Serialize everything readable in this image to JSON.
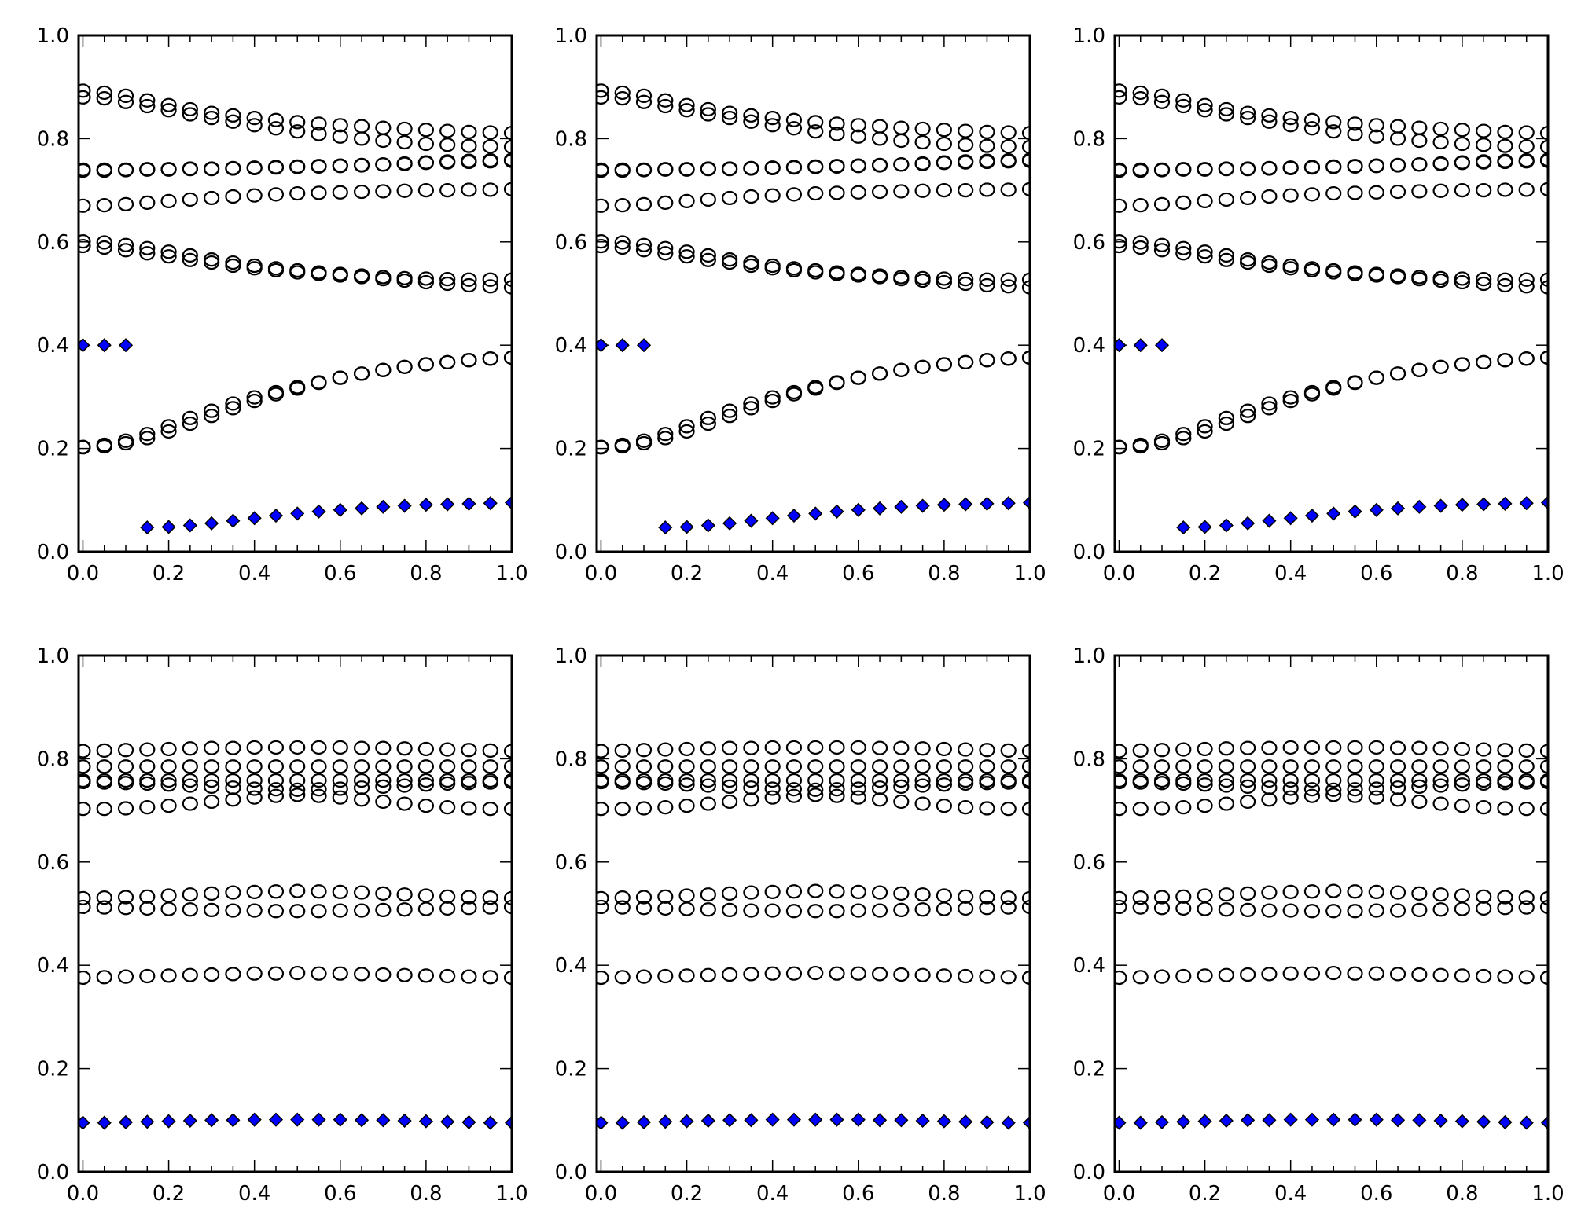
{
  "rows": {
    "top": {
      "type": "scatter",
      "xlim": [
        -0.01,
        1.0
      ],
      "ylim": [
        0.0,
        1.0
      ],
      "xticks": [
        "0.0",
        "0.2",
        "0.4",
        "0.6",
        "0.8",
        "1.0"
      ],
      "yticks": [
        "0.0",
        "0.2",
        "0.4",
        "0.6",
        "0.8",
        "1.0"
      ],
      "x": [
        0,
        0.05,
        0.1,
        0.15,
        0.2,
        0.25,
        0.3,
        0.35,
        0.4,
        0.45,
        0.5,
        0.55,
        0.6,
        0.65,
        0.7,
        0.75,
        0.8,
        0.85,
        0.9,
        0.95,
        1.0
      ],
      "open_circle_series": [
        [
          0.893,
          0.889,
          0.883,
          0.874,
          0.865,
          0.857,
          0.85,
          0.845,
          0.84,
          0.836,
          0.832,
          0.829,
          0.826,
          0.824,
          0.821,
          0.819,
          0.817,
          0.815,
          0.813,
          0.812,
          0.811
        ],
        [
          0.88,
          0.878,
          0.871,
          0.863,
          0.855,
          0.847,
          0.84,
          0.833,
          0.826,
          0.82,
          0.814,
          0.809,
          0.804,
          0.8,
          0.796,
          0.793,
          0.79,
          0.788,
          0.786,
          0.785,
          0.784
        ],
        [
          0.74,
          0.74,
          0.74,
          0.741,
          0.741,
          0.742,
          0.742,
          0.743,
          0.744,
          0.745,
          0.746,
          0.747,
          0.748,
          0.749,
          0.75,
          0.751,
          0.753,
          0.754,
          0.755,
          0.756,
          0.757
        ],
        [
          0.738,
          0.738,
          0.739,
          0.74,
          0.74,
          0.741,
          0.741,
          0.742,
          0.743,
          0.744,
          0.745,
          0.746,
          0.747,
          0.748,
          0.75,
          0.752,
          0.754,
          0.756,
          0.757,
          0.758,
          0.759
        ],
        [
          0.67,
          0.671,
          0.673,
          0.676,
          0.679,
          0.682,
          0.685,
          0.688,
          0.69,
          0.692,
          0.694,
          0.695,
          0.696,
          0.697,
          0.698,
          0.699,
          0.7,
          0.7,
          0.701,
          0.701,
          0.702
        ],
        [
          0.601,
          0.599,
          0.594,
          0.588,
          0.581,
          0.574,
          0.566,
          0.56,
          0.554,
          0.549,
          0.545,
          0.541,
          0.538,
          0.535,
          0.532,
          0.53,
          0.529,
          0.528,
          0.527,
          0.527,
          0.527
        ],
        [
          0.592,
          0.589,
          0.584,
          0.578,
          0.572,
          0.565,
          0.56,
          0.554,
          0.549,
          0.545,
          0.541,
          0.538,
          0.535,
          0.532,
          0.528,
          0.525,
          0.522,
          0.519,
          0.516,
          0.514,
          0.512
        ],
        [
          0.203,
          0.207,
          0.215,
          0.228,
          0.243,
          0.259,
          0.273,
          0.287,
          0.299,
          0.309,
          0.319,
          0.328,
          0.337,
          0.345,
          0.352,
          0.358,
          0.363,
          0.367,
          0.371,
          0.374,
          0.376
        ],
        [
          0.202,
          0.204,
          0.21,
          0.22,
          0.233,
          0.248,
          0.263,
          0.278,
          0.292,
          0.305,
          0.316,
          0.327,
          0.337,
          0.345,
          0.352,
          0.358,
          0.363,
          0.367,
          0.371,
          0.374,
          0.376
        ]
      ],
      "diamond_series": [
        0.4,
        0.4,
        0.4,
        0.047,
        0.048,
        0.051,
        0.055,
        0.06,
        0.065,
        0.07,
        0.074,
        0.078,
        0.081,
        0.084,
        0.087,
        0.089,
        0.091,
        0.092,
        0.093,
        0.094,
        0.095
      ]
    },
    "bottom": {
      "type": "scatter",
      "xlim": [
        -0.01,
        1.0
      ],
      "ylim": [
        0.0,
        1.0
      ],
      "xticks": [
        "0.0",
        "0.2",
        "0.4",
        "0.6",
        "0.8",
        "1.0"
      ],
      "yticks": [
        "0.0",
        "0.2",
        "0.4",
        "0.6",
        "0.8",
        "1.0"
      ],
      "x": [
        0,
        0.05,
        0.1,
        0.15,
        0.2,
        0.25,
        0.3,
        0.35,
        0.4,
        0.45,
        0.5,
        0.55,
        0.6,
        0.65,
        0.7,
        0.75,
        0.8,
        0.85,
        0.9,
        0.95,
        1.0
      ],
      "open_circle_series": [
        [
          0.815,
          0.816,
          0.817,
          0.818,
          0.819,
          0.82,
          0.821,
          0.821,
          0.822,
          0.822,
          0.822,
          0.822,
          0.822,
          0.821,
          0.821,
          0.82,
          0.819,
          0.818,
          0.817,
          0.816,
          0.815
        ],
        [
          0.785,
          0.785,
          0.785,
          0.785,
          0.785,
          0.785,
          0.785,
          0.785,
          0.785,
          0.785,
          0.785,
          0.785,
          0.785,
          0.785,
          0.785,
          0.785,
          0.785,
          0.785,
          0.785,
          0.785,
          0.785
        ],
        [
          0.758,
          0.758,
          0.758,
          0.758,
          0.758,
          0.758,
          0.758,
          0.758,
          0.758,
          0.758,
          0.758,
          0.758,
          0.758,
          0.758,
          0.758,
          0.758,
          0.758,
          0.758,
          0.758,
          0.758,
          0.758
        ],
        [
          0.755,
          0.754,
          0.753,
          0.752,
          0.75,
          0.748,
          0.746,
          0.744,
          0.742,
          0.741,
          0.74,
          0.741,
          0.742,
          0.744,
          0.746,
          0.748,
          0.75,
          0.752,
          0.753,
          0.754,
          0.755
        ],
        [
          0.703,
          0.703,
          0.704,
          0.706,
          0.709,
          0.713,
          0.717,
          0.721,
          0.725,
          0.728,
          0.73,
          0.728,
          0.725,
          0.721,
          0.717,
          0.713,
          0.709,
          0.706,
          0.704,
          0.703,
          0.703
        ],
        [
          0.53,
          0.531,
          0.532,
          0.533,
          0.535,
          0.537,
          0.539,
          0.541,
          0.542,
          0.543,
          0.544,
          0.543,
          0.542,
          0.541,
          0.539,
          0.537,
          0.535,
          0.533,
          0.532,
          0.531,
          0.53
        ],
        [
          0.513,
          0.512,
          0.511,
          0.51,
          0.509,
          0.508,
          0.507,
          0.506,
          0.506,
          0.505,
          0.505,
          0.505,
          0.506,
          0.506,
          0.507,
          0.508,
          0.509,
          0.51,
          0.511,
          0.512,
          0.513
        ],
        [
          0.376,
          0.377,
          0.378,
          0.379,
          0.38,
          0.381,
          0.382,
          0.383,
          0.384,
          0.384,
          0.385,
          0.384,
          0.384,
          0.383,
          0.382,
          0.381,
          0.38,
          0.379,
          0.378,
          0.377,
          0.376
        ]
      ],
      "diamond_series": [
        0.095,
        0.095,
        0.096,
        0.097,
        0.098,
        0.099,
        0.1,
        0.1,
        0.101,
        0.101,
        0.101,
        0.101,
        0.101,
        0.1,
        0.1,
        0.099,
        0.098,
        0.097,
        0.096,
        0.095,
        0.095
      ]
    }
  },
  "chart_data": [
    {
      "panel": "row1-col1",
      "type": "scatter",
      "data": "rows.top"
    },
    {
      "panel": "row1-col2",
      "type": "scatter",
      "data": "rows.top"
    },
    {
      "panel": "row1-col3",
      "type": "scatter",
      "data": "rows.top"
    },
    {
      "panel": "row2-col1",
      "type": "scatter",
      "data": "rows.bottom"
    },
    {
      "panel": "row2-col2",
      "type": "scatter",
      "data": "rows.bottom"
    },
    {
      "panel": "row2-col3",
      "type": "scatter",
      "data": "rows.bottom"
    }
  ],
  "colors": {
    "diamond_fill": "#0000ff",
    "marker_edge": "#000000",
    "circle_fill": "none"
  }
}
